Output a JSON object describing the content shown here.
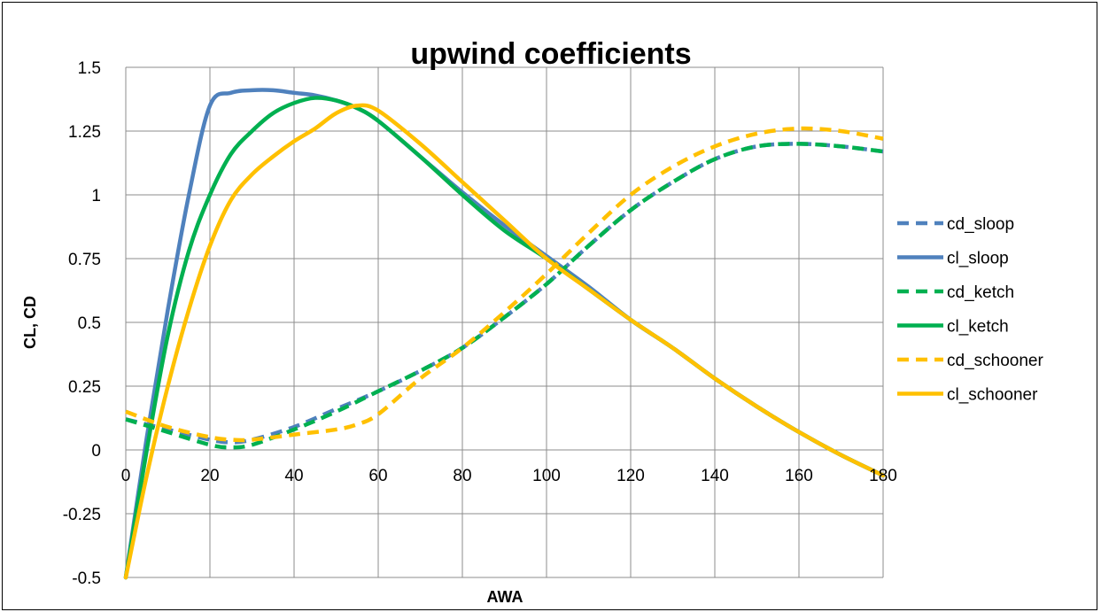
{
  "chart_data": {
    "type": "line",
    "title": "upwind coefficients",
    "xlabel": "AWA",
    "ylabel": "CL, CD",
    "xlim": [
      0,
      180
    ],
    "ylim": [
      -0.5,
      1.5
    ],
    "xticks": [
      0,
      20,
      40,
      60,
      80,
      100,
      120,
      140,
      160,
      180
    ],
    "yticks": [
      -0.5,
      -0.25,
      0,
      0.25,
      0.5,
      0.75,
      1,
      1.25,
      1.5
    ],
    "xtick_labels": [
      "0",
      "20",
      "40",
      "60",
      "80",
      "100",
      "120",
      "140",
      "160",
      "180"
    ],
    "ytick_labels": [
      "-0.5",
      "-0.25",
      "0",
      "0.25",
      "0.5",
      "0.75",
      "1",
      "1.25",
      "1.5"
    ],
    "grid": true,
    "legend_position": "right",
    "series": [
      {
        "name": "cd_sloop",
        "color": "#4F81BD",
        "dash": true,
        "x": [
          0,
          10,
          20,
          25,
          30,
          40,
          50,
          60,
          70,
          80,
          90,
          100,
          110,
          120,
          130,
          140,
          150,
          160,
          170,
          180
        ],
        "y": [
          0.12,
          0.08,
          0.04,
          0.03,
          0.04,
          0.09,
          0.16,
          0.23,
          0.31,
          0.4,
          0.52,
          0.65,
          0.8,
          0.94,
          1.05,
          1.14,
          1.19,
          1.2,
          1.19,
          1.17
        ]
      },
      {
        "name": "cl_sloop",
        "color": "#4F81BD",
        "dash": false,
        "x": [
          0,
          5,
          10,
          15,
          20,
          25,
          30,
          35,
          40,
          45,
          50,
          55,
          60,
          70,
          80,
          90,
          100,
          110,
          120,
          130,
          140,
          150,
          160,
          170,
          180
        ],
        "y": [
          -0.5,
          0.05,
          0.55,
          1.0,
          1.35,
          1.4,
          1.41,
          1.41,
          1.4,
          1.39,
          1.37,
          1.34,
          1.29,
          1.15,
          1.01,
          0.88,
          0.76,
          0.64,
          0.51,
          0.4,
          0.28,
          0.17,
          0.07,
          -0.02,
          -0.1
        ]
      },
      {
        "name": "cd_ketch",
        "color": "#00B050",
        "dash": true,
        "x": [
          0,
          10,
          20,
          25,
          30,
          40,
          50,
          60,
          70,
          80,
          90,
          100,
          110,
          120,
          130,
          140,
          150,
          160,
          170,
          180
        ],
        "y": [
          0.12,
          0.07,
          0.02,
          0.01,
          0.02,
          0.08,
          0.15,
          0.23,
          0.31,
          0.4,
          0.52,
          0.65,
          0.8,
          0.94,
          1.05,
          1.14,
          1.19,
          1.2,
          1.19,
          1.17
        ]
      },
      {
        "name": "cl_ketch",
        "color": "#00B050",
        "dash": false,
        "x": [
          0,
          5,
          10,
          15,
          20,
          25,
          30,
          35,
          40,
          45,
          50,
          55,
          60,
          70,
          80,
          90,
          100,
          110,
          120,
          130,
          140,
          150,
          160,
          170,
          180
        ],
        "y": [
          -0.5,
          0.0,
          0.45,
          0.78,
          1.0,
          1.16,
          1.25,
          1.32,
          1.36,
          1.38,
          1.37,
          1.34,
          1.29,
          1.15,
          1.0,
          0.86,
          0.75,
          0.63,
          0.51,
          0.4,
          0.28,
          0.17,
          0.07,
          -0.02,
          -0.1
        ]
      },
      {
        "name": "cd_schooner",
        "color": "#FFC000",
        "dash": true,
        "x": [
          0,
          10,
          20,
          25,
          30,
          40,
          50,
          55,
          60,
          70,
          80,
          90,
          100,
          110,
          120,
          130,
          140,
          150,
          160,
          170,
          180
        ],
        "y": [
          0.15,
          0.09,
          0.05,
          0.04,
          0.04,
          0.06,
          0.08,
          0.1,
          0.14,
          0.28,
          0.4,
          0.54,
          0.69,
          0.85,
          1.0,
          1.11,
          1.19,
          1.24,
          1.26,
          1.25,
          1.22
        ]
      },
      {
        "name": "cl_schooner",
        "color": "#FFC000",
        "dash": false,
        "x": [
          0,
          5,
          10,
          15,
          20,
          25,
          30,
          35,
          40,
          45,
          50,
          55,
          60,
          70,
          80,
          90,
          100,
          110,
          120,
          130,
          140,
          150,
          160,
          170,
          180
        ],
        "y": [
          -0.5,
          -0.1,
          0.25,
          0.55,
          0.8,
          0.98,
          1.08,
          1.15,
          1.21,
          1.26,
          1.32,
          1.35,
          1.33,
          1.2,
          1.05,
          0.9,
          0.75,
          0.63,
          0.51,
          0.4,
          0.28,
          0.17,
          0.07,
          -0.02,
          -0.1
        ]
      }
    ]
  }
}
